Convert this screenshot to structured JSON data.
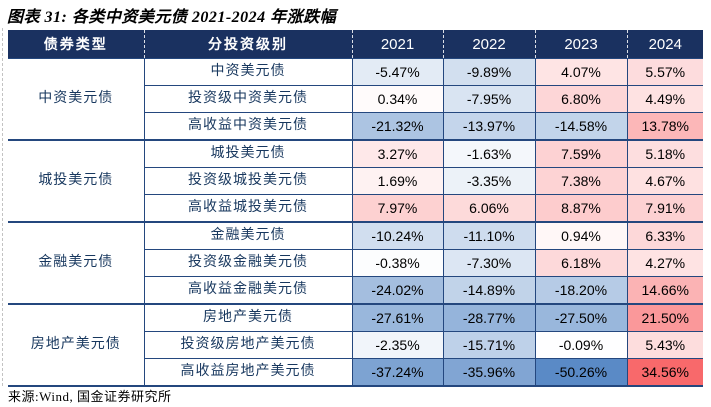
{
  "title": "图表 31: 各类中资美元债 2021-2024 年涨跌幅",
  "source": "来源:Wind, 国金证券研究所",
  "colors": {
    "header_background": "#1A3160",
    "table_border": "#24477E",
    "label_text": "#17375E",
    "value_text": "#000000"
  },
  "table": {
    "col_headers": [
      "债券类型",
      "分投资级别",
      "2021",
      "2022",
      "2023",
      "2024"
    ],
    "heatmap": {
      "positive_color": "#F8696B",
      "negative_color": "#5A8AC6",
      "neutral_color": "#FFFFFF",
      "positive_limit": 34.56,
      "negative_limit": 50.26,
      "gamma": 0.8
    },
    "groups": [
      {
        "type": "中资美元债",
        "rows": [
          {
            "label": "中资美元债",
            "values": [
              -5.47,
              -9.89,
              4.07,
              5.57
            ]
          },
          {
            "label": "投资级中资美元债",
            "values": [
              0.34,
              -7.95,
              6.8,
              4.49
            ]
          },
          {
            "label": "高收益中资美元债",
            "values": [
              -21.32,
              -13.97,
              -14.58,
              13.78
            ]
          }
        ]
      },
      {
        "type": "城投美元债",
        "rows": [
          {
            "label": "城投美元债",
            "values": [
              3.27,
              -1.63,
              7.59,
              5.18
            ]
          },
          {
            "label": "投资级城投美元债",
            "values": [
              1.69,
              -3.35,
              7.38,
              4.67
            ]
          },
          {
            "label": "高收益城投美元债",
            "values": [
              7.97,
              6.06,
              8.87,
              7.91
            ]
          }
        ]
      },
      {
        "type": "金融美元债",
        "rows": [
          {
            "label": "金融美元债",
            "values": [
              -10.24,
              -11.1,
              0.94,
              6.33
            ]
          },
          {
            "label": "投资级金融美元债",
            "values": [
              -0.38,
              -7.3,
              6.18,
              4.27
            ]
          },
          {
            "label": "高收益金融美元债",
            "values": [
              -24.02,
              -14.89,
              -18.2,
              14.66
            ]
          }
        ]
      },
      {
        "type": "房地产美元债",
        "rows": [
          {
            "label": "房地产美元债",
            "values": [
              -27.61,
              -28.77,
              -27.5,
              21.5
            ]
          },
          {
            "label": "投资级房地产美元债",
            "values": [
              -2.35,
              -15.71,
              -0.09,
              5.43
            ]
          },
          {
            "label": "高收益房地产美元债",
            "values": [
              -37.24,
              -35.96,
              -50.26,
              34.56
            ]
          }
        ]
      }
    ]
  },
  "chart_data": {
    "type": "table",
    "title": "图表 31: 各类中资美元债 2021-2024 年涨跌幅",
    "columns": [
      "债券类型",
      "分投资级别",
      "2021",
      "2022",
      "2023",
      "2024"
    ],
    "value_unit": "%",
    "heatmap_note": "blue = negative, red = positive, white = near zero",
    "rows": [
      [
        "中资美元债",
        "中资美元债",
        -5.47,
        -9.89,
        4.07,
        5.57
      ],
      [
        "中资美元债",
        "投资级中资美元债",
        0.34,
        -7.95,
        6.8,
        4.49
      ],
      [
        "中资美元债",
        "高收益中资美元债",
        -21.32,
        -13.97,
        -14.58,
        13.78
      ],
      [
        "城投美元债",
        "城投美元债",
        3.27,
        -1.63,
        7.59,
        5.18
      ],
      [
        "城投美元债",
        "投资级城投美元债",
        1.69,
        -3.35,
        7.38,
        4.67
      ],
      [
        "城投美元债",
        "高收益城投美元债",
        7.97,
        6.06,
        8.87,
        7.91
      ],
      [
        "金融美元债",
        "金融美元债",
        -10.24,
        -11.1,
        0.94,
        6.33
      ],
      [
        "金融美元债",
        "投资级金融美元债",
        -0.38,
        -7.3,
        6.18,
        4.27
      ],
      [
        "金融美元债",
        "高收益金融美元债",
        -24.02,
        -14.89,
        -18.2,
        14.66
      ],
      [
        "房地产美元债",
        "房地产美元债",
        -27.61,
        -28.77,
        -27.5,
        21.5
      ],
      [
        "房地产美元债",
        "投资级房地产美元债",
        -2.35,
        -15.71,
        -0.09,
        5.43
      ],
      [
        "房地产美元债",
        "高收益房地产美元债",
        -37.24,
        -35.96,
        -50.26,
        34.56
      ]
    ]
  }
}
